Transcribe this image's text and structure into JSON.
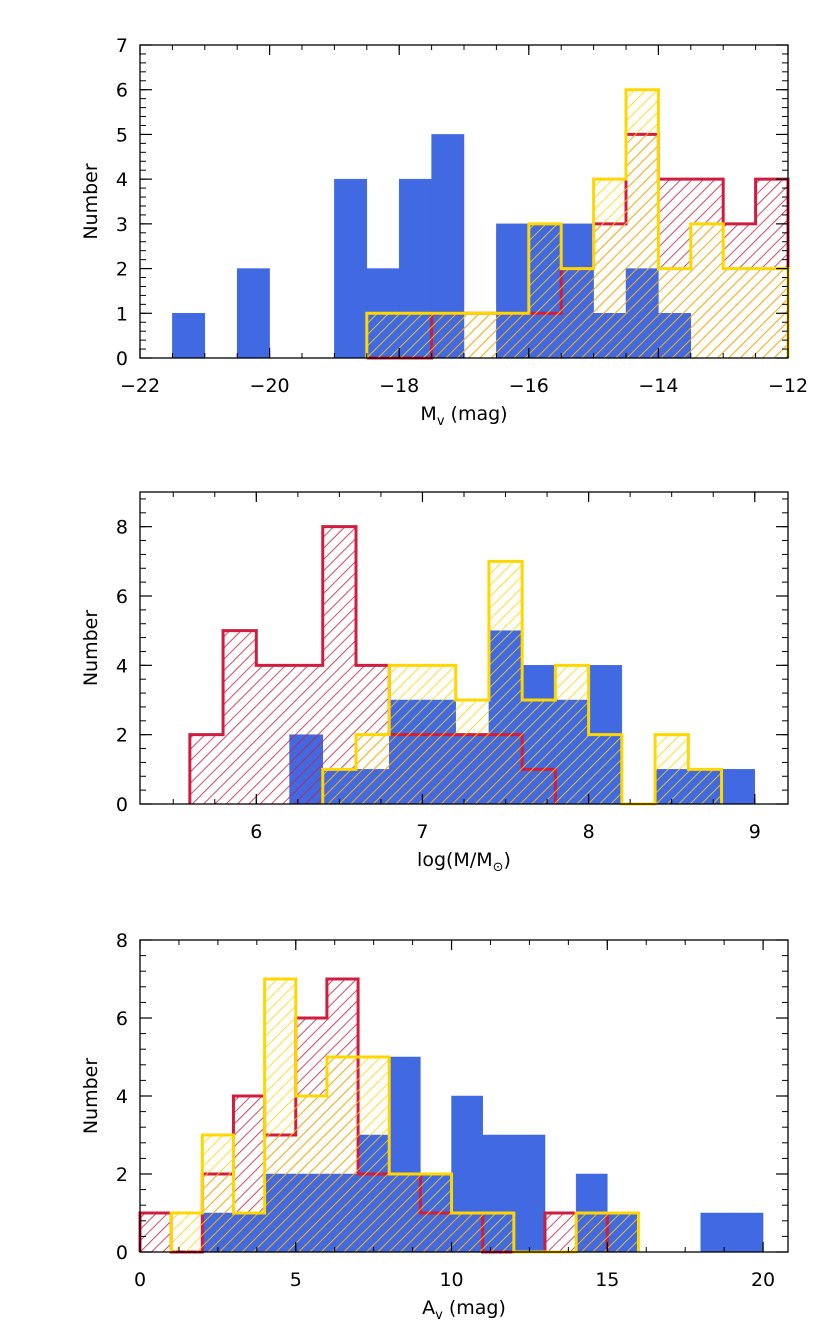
{
  "colors": {
    "blue": "#4169e1",
    "red": "#d01c3f",
    "yellow": "#ffd700"
  },
  "chart_data": [
    {
      "type": "bar",
      "xlabel_main": "M",
      "xlabel_sub": "v",
      "xlabel_rest": " (mag)",
      "ylabel": "Number",
      "xlim": [
        -22,
        -12
      ],
      "ylim": [
        0,
        7
      ],
      "xticks": [
        -22,
        -20,
        -18,
        -16,
        -14,
        -12
      ],
      "xtick_labels": [
        "−22",
        "−20",
        "−18",
        "−16",
        "−14",
        "−12"
      ],
      "yticks": [
        0,
        1,
        2,
        3,
        4,
        5,
        6,
        7
      ],
      "ytick_labels": [
        "0",
        "1",
        "2",
        "3",
        "4",
        "5",
        "6",
        "7"
      ],
      "series": [
        {
          "color": "blue",
          "style": "filled",
          "bin_width": 0.5,
          "bins": [
            [
              -21.25,
              1
            ],
            [
              -20.75,
              0
            ],
            [
              -20.25,
              2
            ],
            [
              -19.75,
              0
            ],
            [
              -19.25,
              0
            ],
            [
              -18.75,
              4
            ],
            [
              -18.25,
              2
            ],
            [
              -17.75,
              4
            ],
            [
              -17.25,
              5
            ],
            [
              -16.75,
              0
            ],
            [
              -16.25,
              3
            ],
            [
              -15.75,
              3
            ],
            [
              -15.25,
              3
            ],
            [
              -14.75,
              1
            ],
            [
              -14.25,
              2
            ],
            [
              -13.75,
              1
            ]
          ]
        },
        {
          "color": "red",
          "style": "hatched",
          "bin_width": 0.5,
          "bins": [
            [
              -18.25,
              0
            ],
            [
              -17.75,
              0
            ],
            [
              -17.25,
              1
            ],
            [
              -16.75,
              1
            ],
            [
              -16.25,
              1
            ],
            [
              -15.75,
              1
            ],
            [
              -15.25,
              2
            ],
            [
              -14.75,
              3
            ],
            [
              -14.25,
              5
            ],
            [
              -13.75,
              4
            ],
            [
              -13.25,
              4
            ],
            [
              -12.75,
              3
            ],
            [
              -12.25,
              4
            ]
          ]
        },
        {
          "color": "yellow",
          "style": "hatched",
          "bin_width": 0.5,
          "bins": [
            [
              -18.25,
              1
            ],
            [
              -17.75,
              1
            ],
            [
              -17.25,
              1
            ],
            [
              -16.75,
              1
            ],
            [
              -16.25,
              1
            ],
            [
              -15.75,
              3
            ],
            [
              -15.25,
              2
            ],
            [
              -14.75,
              4
            ],
            [
              -14.25,
              6
            ],
            [
              -13.75,
              2
            ],
            [
              -13.25,
              3
            ],
            [
              -12.75,
              2
            ],
            [
              -12.25,
              2
            ]
          ]
        }
      ]
    },
    {
      "type": "bar",
      "xlabel_main": "log(M/M",
      "xlabel_sub": "⊙",
      "xlabel_rest": ")",
      "ylabel": "Number",
      "xlim": [
        5.3,
        9.2
      ],
      "ylim": [
        0,
        9
      ],
      "xticks": [
        6,
        7,
        8,
        9
      ],
      "xtick_labels": [
        "6",
        "7",
        "8",
        "9"
      ],
      "yticks": [
        0,
        2,
        4,
        6,
        8
      ],
      "ytick_labels": [
        "0",
        "2",
        "4",
        "6",
        "8"
      ],
      "series": [
        {
          "color": "blue",
          "style": "filled",
          "bin_width": 0.2,
          "bins": [
            [
              6.3,
              2
            ],
            [
              6.5,
              1
            ],
            [
              6.7,
              1
            ],
            [
              6.9,
              3
            ],
            [
              7.1,
              3
            ],
            [
              7.3,
              2
            ],
            [
              7.5,
              5
            ],
            [
              7.7,
              4
            ],
            [
              7.9,
              3
            ],
            [
              8.1,
              4
            ],
            [
              8.3,
              0
            ],
            [
              8.5,
              1
            ],
            [
              8.7,
              1
            ],
            [
              8.9,
              1
            ]
          ]
        },
        {
          "color": "red",
          "style": "hatched",
          "bin_width": 0.2,
          "bins": [
            [
              5.7,
              2
            ],
            [
              5.9,
              5
            ],
            [
              6.1,
              4
            ],
            [
              6.3,
              4
            ],
            [
              6.5,
              8
            ],
            [
              6.7,
              4
            ],
            [
              6.9,
              2
            ],
            [
              7.1,
              2
            ],
            [
              7.3,
              2
            ],
            [
              7.5,
              2
            ],
            [
              7.7,
              1
            ]
          ]
        },
        {
          "color": "yellow",
          "style": "hatched",
          "bin_width": 0.2,
          "bins": [
            [
              6.5,
              1
            ],
            [
              6.7,
              2
            ],
            [
              6.9,
              4
            ],
            [
              7.1,
              4
            ],
            [
              7.3,
              3
            ],
            [
              7.5,
              7
            ],
            [
              7.7,
              3
            ],
            [
              7.9,
              4
            ],
            [
              8.1,
              2
            ],
            [
              8.3,
              0
            ],
            [
              8.5,
              2
            ],
            [
              8.7,
              1
            ]
          ]
        }
      ]
    },
    {
      "type": "bar",
      "xlabel_main": "A",
      "xlabel_sub": "v",
      "xlabel_rest": " (mag)",
      "ylabel": "Number",
      "xlim": [
        0,
        20.8
      ],
      "ylim": [
        0,
        8
      ],
      "xticks": [
        0,
        5,
        10,
        15,
        20
      ],
      "xtick_labels": [
        "0",
        "5",
        "10",
        "15",
        "20"
      ],
      "yticks": [
        0,
        2,
        4,
        6,
        8
      ],
      "ytick_labels": [
        "0",
        "2",
        "4",
        "6",
        "8"
      ],
      "series": [
        {
          "color": "blue",
          "style": "filled",
          "bin_width": 1,
          "bins": [
            [
              2.5,
              1
            ],
            [
              3.5,
              1
            ],
            [
              4.5,
              2
            ],
            [
              5.5,
              2
            ],
            [
              6.5,
              2
            ],
            [
              7.5,
              3
            ],
            [
              8.5,
              5
            ],
            [
              9.5,
              2
            ],
            [
              10.5,
              4
            ],
            [
              11.5,
              3
            ],
            [
              12.5,
              3
            ],
            [
              13.5,
              0
            ],
            [
              14.5,
              2
            ],
            [
              15.5,
              1
            ],
            [
              18.5,
              1
            ],
            [
              19.5,
              1
            ]
          ]
        },
        {
          "color": "red",
          "style": "hatched",
          "bin_width": 1,
          "bins": [
            [
              0.5,
              1
            ],
            [
              1.5,
              0
            ],
            [
              2.5,
              2
            ],
            [
              3.5,
              4
            ],
            [
              4.5,
              3
            ],
            [
              5.5,
              6
            ],
            [
              6.5,
              7
            ],
            [
              7.5,
              2
            ],
            [
              8.5,
              2
            ],
            [
              9.5,
              1
            ],
            [
              10.5,
              1
            ],
            [
              11.5,
              0
            ],
            [
              12.5,
              0
            ],
            [
              13.5,
              1
            ],
            [
              14.5,
              1
            ]
          ]
        },
        {
          "color": "yellow",
          "style": "hatched",
          "bin_width": 1,
          "bins": [
            [
              1.5,
              1
            ],
            [
              2.5,
              3
            ],
            [
              3.5,
              1
            ],
            [
              4.5,
              7
            ],
            [
              5.5,
              4
            ],
            [
              6.5,
              5
            ],
            [
              7.5,
              5
            ],
            [
              8.5,
              2
            ],
            [
              9.5,
              2
            ],
            [
              10.5,
              1
            ],
            [
              11.5,
              1
            ],
            [
              12.5,
              0
            ],
            [
              13.5,
              0
            ],
            [
              14.5,
              1
            ],
            [
              15.5,
              1
            ]
          ]
        }
      ]
    }
  ]
}
